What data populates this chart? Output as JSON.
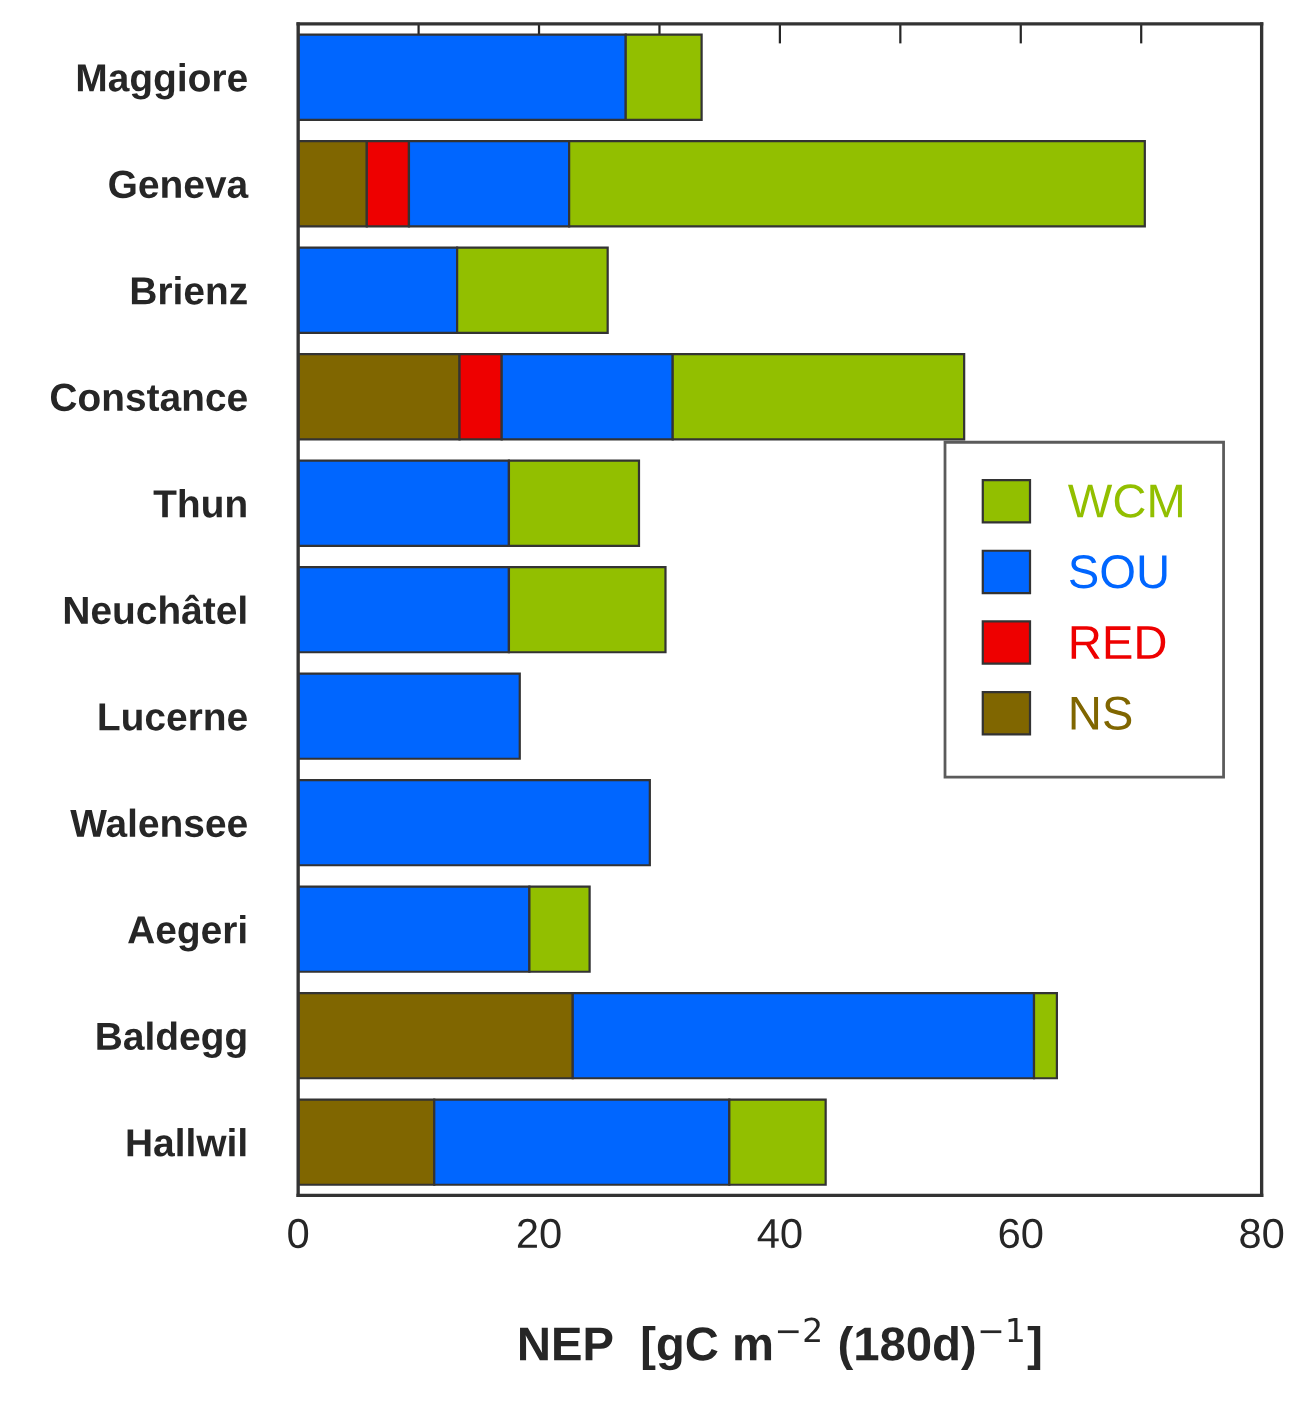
{
  "chart_data": {
    "type": "bar",
    "orientation": "horizontal",
    "stacked": true,
    "xlabel": "NEP  [gC m$^{−2}$ (180d)$^{−1}$]",
    "categories": [
      "Maggiore",
      "Geneva",
      "Brienz",
      "Constance",
      "Thun",
      "Neuchâtel",
      "Lucerne",
      "Walensee",
      "Aegeri",
      "Baldegg",
      "Hallwil"
    ],
    "series": [
      {
        "name": "NS",
        "color": "#806600",
        "values": [
          null,
          5.7,
          null,
          13.4,
          null,
          null,
          null,
          null,
          null,
          22.8,
          11.3
        ]
      },
      {
        "name": "RED",
        "color": "#ee0000",
        "values": [
          null,
          3.5,
          null,
          3.5,
          null,
          null,
          null,
          null,
          null,
          null,
          null
        ]
      },
      {
        "name": "SOU",
        "color": "#0066ff",
        "values": [
          27.2,
          13.3,
          13.2,
          14.2,
          17.5,
          17.5,
          18.4,
          29.2,
          19.2,
          38.3,
          24.5
        ]
      },
      {
        "name": "WCM",
        "color": "#92bf00",
        "values": [
          6.3,
          47.8,
          12.5,
          24.2,
          10.8,
          13.0,
          null,
          null,
          5.0,
          1.9,
          8.0
        ]
      }
    ],
    "xlim": [
      0,
      80
    ],
    "xticks": [
      0,
      {
        "value": 10,
        "label": null
      },
      20,
      {
        "value": 30,
        "label": null
      },
      40,
      {
        "value": 50,
        "label": null
      },
      60,
      {
        "value": 70,
        "label": null
      },
      80
    ],
    "grid": false,
    "legend": "center right"
  }
}
